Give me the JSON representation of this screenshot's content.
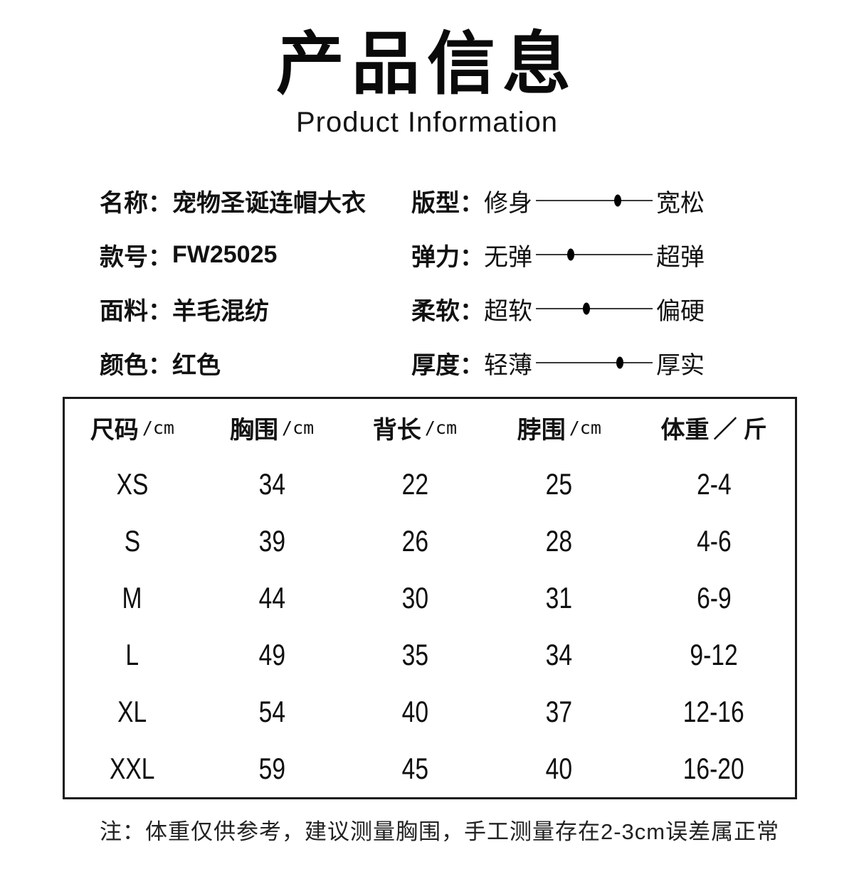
{
  "page": {
    "title": "产品信息",
    "subtitle": "Product Information"
  },
  "attributes": [
    {
      "label": "名称：",
      "value": "宠物圣诞连帽大衣"
    },
    {
      "label": "款号：",
      "value": "FW25025"
    },
    {
      "label": "面料：",
      "value": "羊毛混纺"
    },
    {
      "label": "颜色：",
      "value": "红色"
    }
  ],
  "sliders": [
    {
      "label": "版型：",
      "left_label": "修身",
      "right_label": "宽松",
      "position_pct": 70
    },
    {
      "label": "弹力：",
      "left_label": "无弹",
      "right_label": "超弹",
      "position_pct": 30
    },
    {
      "label": "柔软：",
      "left_label": "超软",
      "right_label": "偏硬",
      "position_pct": 43
    },
    {
      "label": "厚度：",
      "left_label": "轻薄",
      "right_label": "厚实",
      "position_pct": 72
    }
  ],
  "size_table": {
    "columns": [
      {
        "name": "尺码",
        "unit": "/cm"
      },
      {
        "name": "胸围",
        "unit": "/cm"
      },
      {
        "name": "背长",
        "unit": "/cm"
      },
      {
        "name": "脖围",
        "unit": "/cm"
      },
      {
        "name": "体重",
        "unit": "／ 斤"
      }
    ],
    "rows": [
      [
        "XS",
        "34",
        "22",
        "25",
        "2-4"
      ],
      [
        "S",
        "39",
        "26",
        "28",
        "4-6"
      ],
      [
        "M",
        "44",
        "30",
        "31",
        "6-9"
      ],
      [
        "L",
        "49",
        "35",
        "34",
        "9-12"
      ],
      [
        "XL",
        "54",
        "40",
        "37",
        "12-16"
      ],
      [
        "XXL",
        "59",
        "45",
        "40",
        "16-20"
      ]
    ]
  },
  "note": "注：体重仅供参考，建议测量胸围，手工测量存在2-3cm误差属正常",
  "colors": {
    "background": "#ffffff",
    "text": "#111111",
    "slider_line": "#3a3a3a",
    "table_border": "#1a1a1a"
  }
}
